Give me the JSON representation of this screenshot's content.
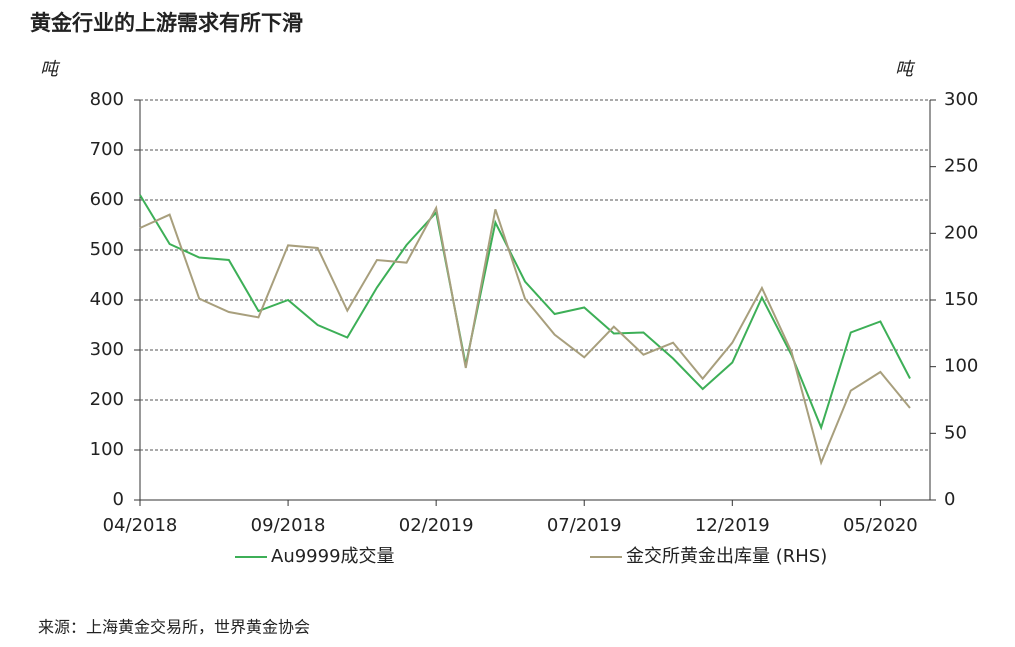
{
  "chart_data": {
    "type": "line",
    "title": "黄金行业的上游需求有所下滑",
    "y_unit": "吨",
    "y2_unit": "吨",
    "source": "来源：上海黄金交易所，世界黄金协会",
    "categories": [
      "04/2018",
      null,
      null,
      null,
      null,
      "09/2018",
      null,
      null,
      null,
      null,
      "02/2019",
      null,
      null,
      null,
      null,
      "07/2019",
      null,
      null,
      null,
      null,
      "12/2019",
      null,
      null,
      null,
      null,
      "05/2020",
      null
    ],
    "series": [
      {
        "name": "Au9999成交量",
        "color": "#3daf57",
        "values": [
          610,
          512,
          485,
          480,
          378,
          400,
          350,
          325,
          425,
          510,
          575,
          270,
          555,
          437,
          372,
          385,
          333,
          335,
          283,
          222,
          275,
          405,
          290,
          145,
          335,
          357,
          243
        ]
      },
      {
        "name": "金交所黄金出库量 (RHS)",
        "color": "#a89f7d",
        "axis": "y2",
        "values": [
          204,
          214,
          151,
          141,
          137,
          191,
          189,
          142,
          180,
          178,
          219,
          99,
          218,
          151,
          124,
          107,
          130,
          109,
          118,
          91,
          118,
          159,
          111,
          28,
          82,
          96,
          69
        ]
      }
    ],
    "ylim": [
      0,
      800
    ],
    "yticks": [
      0,
      100,
      200,
      300,
      400,
      500,
      600,
      700,
      800
    ],
    "y2lim": [
      0,
      300
    ],
    "y2ticks": [
      0,
      50,
      100,
      150,
      200,
      250,
      300
    ],
    "grid": true
  }
}
